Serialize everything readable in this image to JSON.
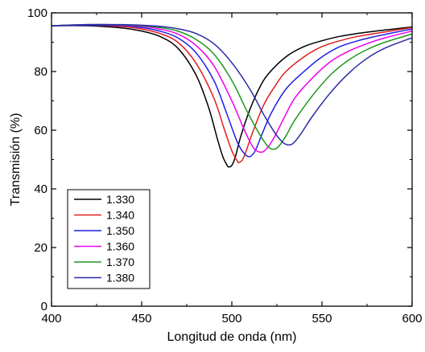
{
  "chart_data": {
    "type": "line",
    "title": "",
    "xlabel": "Longitud de onda (nm)",
    "ylabel": "Transmisión (%)",
    "xlim": [
      400,
      600
    ],
    "ylim": [
      0,
      100
    ],
    "x_ticks": [
      400,
      450,
      500,
      550,
      600
    ],
    "y_ticks": [
      0,
      20,
      40,
      60,
      80,
      100
    ],
    "x_tick_labels": [
      "400",
      "450",
      "500",
      "550",
      "600"
    ],
    "y_tick_labels": [
      "0",
      "20",
      "40",
      "60",
      "80",
      "100"
    ],
    "grid": false,
    "legend": {
      "position": "bottom-left"
    },
    "series": [
      {
        "name": "1.330",
        "color": "#000000",
        "points": [
          [
            400,
            95.6
          ],
          [
            420,
            95.6
          ],
          [
            440,
            94.8
          ],
          [
            450,
            93.8
          ],
          [
            460,
            92.0
          ],
          [
            470,
            88.0
          ],
          [
            480,
            79.0
          ],
          [
            487,
            68.0
          ],
          [
            492,
            57.0
          ],
          [
            495,
            51.0
          ],
          [
            497,
            48.5
          ],
          [
            498,
            47.5
          ],
          [
            500,
            48.0
          ],
          [
            502,
            51.0
          ],
          [
            505,
            58.0
          ],
          [
            510,
            67.0
          ],
          [
            515,
            74.0
          ],
          [
            520,
            79.0
          ],
          [
            530,
            85.0
          ],
          [
            540,
            88.5
          ],
          [
            550,
            90.5
          ],
          [
            560,
            92.0
          ],
          [
            570,
            93.0
          ],
          [
            580,
            93.8
          ],
          [
            590,
            94.5
          ],
          [
            600,
            95.2
          ]
        ]
      },
      {
        "name": "1.340",
        "color": "#e41e1e",
        "points": [
          [
            400,
            95.6
          ],
          [
            420,
            95.8
          ],
          [
            440,
            95.3
          ],
          [
            450,
            94.5
          ],
          [
            460,
            93.0
          ],
          [
            470,
            90.0
          ],
          [
            480,
            83.0
          ],
          [
            490,
            71.0
          ],
          [
            496,
            60.0
          ],
          [
            500,
            53.0
          ],
          [
            503,
            49.5
          ],
          [
            504,
            49.0
          ],
          [
            506,
            50.0
          ],
          [
            508,
            53.0
          ],
          [
            512,
            60.0
          ],
          [
            518,
            69.0
          ],
          [
            525,
            76.0
          ],
          [
            530,
            80.0
          ],
          [
            540,
            85.0
          ],
          [
            550,
            88.5
          ],
          [
            560,
            90.5
          ],
          [
            570,
            92.0
          ],
          [
            580,
            93.0
          ],
          [
            590,
            94.0
          ],
          [
            600,
            95.0
          ]
        ]
      },
      {
        "name": "1.350",
        "color": "#1e1ee6",
        "points": [
          [
            400,
            95.6
          ],
          [
            420,
            95.8
          ],
          [
            440,
            95.6
          ],
          [
            450,
            95.0
          ],
          [
            460,
            93.8
          ],
          [
            470,
            91.5
          ],
          [
            480,
            86.5
          ],
          [
            490,
            77.0
          ],
          [
            497,
            66.0
          ],
          [
            503,
            56.0
          ],
          [
            507,
            52.0
          ],
          [
            510,
            51.0
          ],
          [
            513,
            53.0
          ],
          [
            517,
            59.0
          ],
          [
            522,
            66.0
          ],
          [
            530,
            74.0
          ],
          [
            540,
            80.0
          ],
          [
            550,
            85.0
          ],
          [
            560,
            88.5
          ],
          [
            570,
            90.5
          ],
          [
            580,
            92.0
          ],
          [
            590,
            93.3
          ],
          [
            600,
            94.5
          ]
        ]
      },
      {
        "name": "1.360",
        "color": "#ee00ee",
        "points": [
          [
            400,
            95.6
          ],
          [
            420,
            96.0
          ],
          [
            440,
            95.8
          ],
          [
            450,
            95.4
          ],
          [
            460,
            94.5
          ],
          [
            470,
            92.8
          ],
          [
            480,
            89.0
          ],
          [
            490,
            82.0
          ],
          [
            500,
            70.0
          ],
          [
            507,
            60.0
          ],
          [
            512,
            54.0
          ],
          [
            516,
            52.5
          ],
          [
            519,
            53.5
          ],
          [
            523,
            57.0
          ],
          [
            528,
            63.0
          ],
          [
            535,
            71.0
          ],
          [
            545,
            78.0
          ],
          [
            555,
            83.5
          ],
          [
            565,
            87.0
          ],
          [
            575,
            89.5
          ],
          [
            585,
            91.5
          ],
          [
            600,
            93.8
          ]
        ]
      },
      {
        "name": "1.370",
        "color": "#1e961e",
        "points": [
          [
            400,
            95.6
          ],
          [
            420,
            96.0
          ],
          [
            440,
            95.9
          ],
          [
            450,
            95.6
          ],
          [
            460,
            95.0
          ],
          [
            470,
            93.8
          ],
          [
            480,
            91.0
          ],
          [
            490,
            86.0
          ],
          [
            500,
            77.0
          ],
          [
            508,
            67.0
          ],
          [
            515,
            59.0
          ],
          [
            520,
            54.5
          ],
          [
            523,
            53.5
          ],
          [
            526,
            54.5
          ],
          [
            530,
            58.0
          ],
          [
            535,
            63.5
          ],
          [
            545,
            72.0
          ],
          [
            555,
            79.0
          ],
          [
            565,
            84.0
          ],
          [
            575,
            87.5
          ],
          [
            585,
            90.0
          ],
          [
            600,
            92.8
          ]
        ]
      },
      {
        "name": "1.380",
        "color": "#2a2aa6",
        "points": [
          [
            400,
            95.6
          ],
          [
            420,
            96.0
          ],
          [
            440,
            96.0
          ],
          [
            450,
            95.8
          ],
          [
            460,
            95.4
          ],
          [
            470,
            94.6
          ],
          [
            480,
            93.0
          ],
          [
            490,
            89.5
          ],
          [
            500,
            83.0
          ],
          [
            510,
            74.0
          ],
          [
            518,
            65.0
          ],
          [
            524,
            59.0
          ],
          [
            528,
            56.0
          ],
          [
            531,
            55.0
          ],
          [
            534,
            55.5
          ],
          [
            538,
            58.5
          ],
          [
            545,
            65.0
          ],
          [
            555,
            73.0
          ],
          [
            565,
            79.5
          ],
          [
            575,
            84.5
          ],
          [
            585,
            88.0
          ],
          [
            600,
            91.5
          ]
        ]
      }
    ]
  }
}
